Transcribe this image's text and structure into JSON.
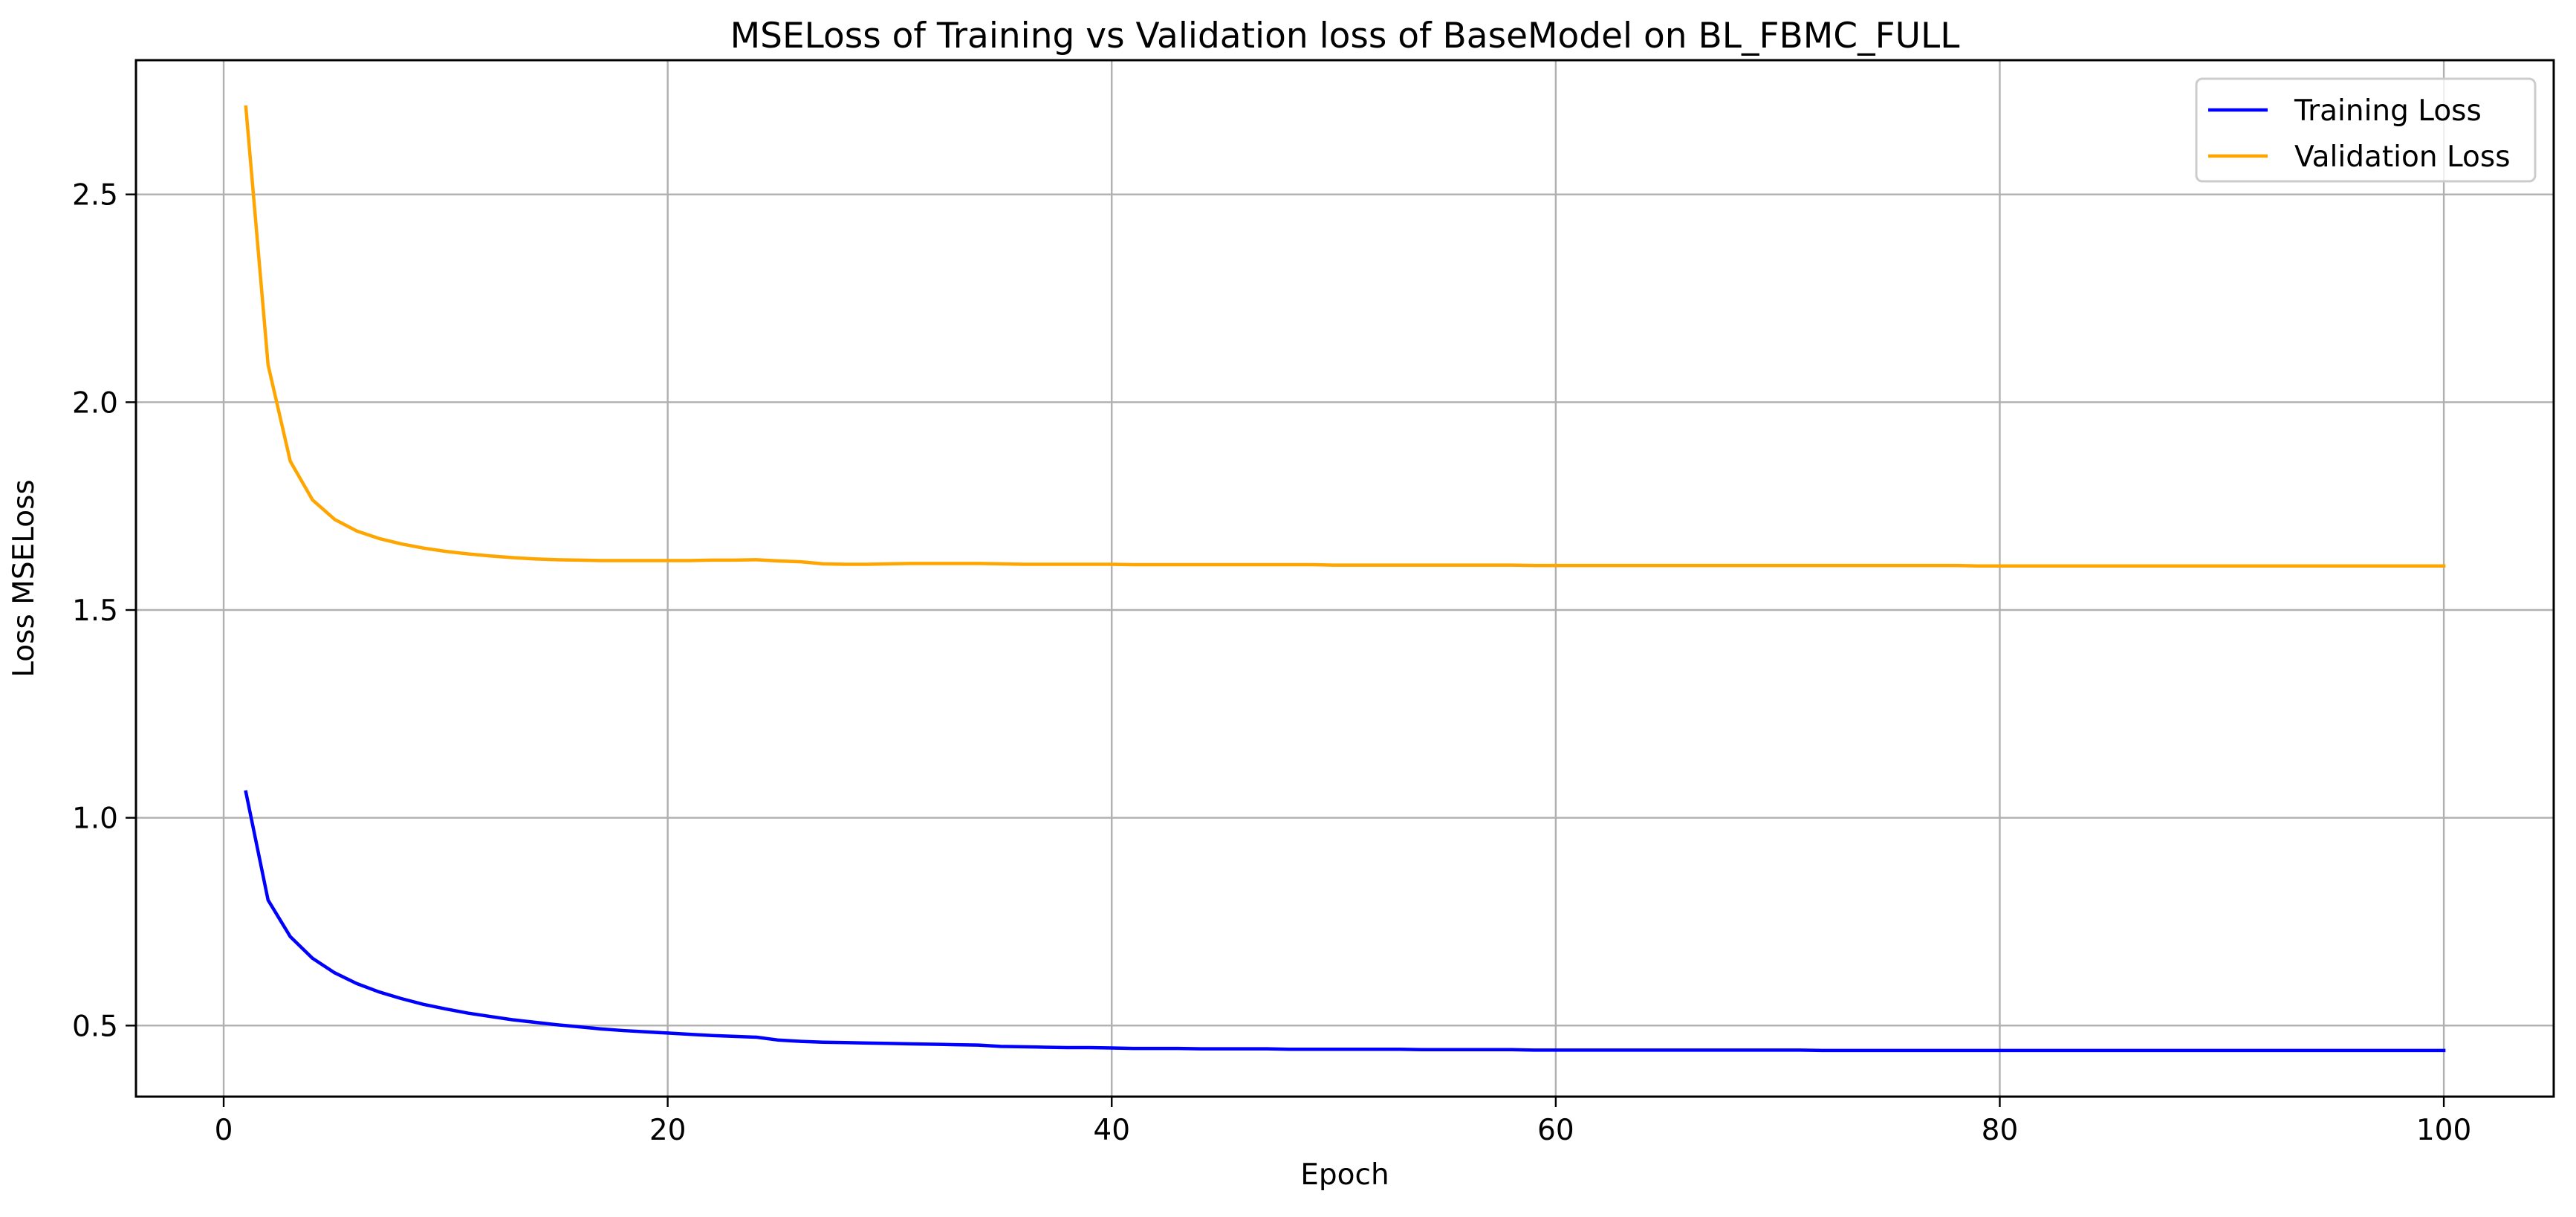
{
  "chart_data": {
    "type": "line",
    "title": "MSELoss of Training vs Validation loss of BaseModel on BL_FBMC_FULL",
    "xlabel": "Epoch",
    "ylabel": "Loss MSELoss",
    "xlim": [
      -3.95,
      104.95
    ],
    "ylim": [
      0.329,
      2.823
    ],
    "x_ticks": [
      0,
      20,
      40,
      60,
      80,
      100
    ],
    "x_tick_labels": [
      "0",
      "20",
      "40",
      "60",
      "80",
      "100"
    ],
    "y_ticks": [
      0.5,
      1.0,
      1.5,
      2.0,
      2.5
    ],
    "y_tick_labels": [
      "0.5",
      "1.0",
      "1.5",
      "2.0",
      "2.5"
    ],
    "grid": true,
    "legend_position": "top-right",
    "x": [
      1,
      2,
      3,
      4,
      5,
      6,
      7,
      8,
      9,
      10,
      11,
      12,
      13,
      14,
      15,
      16,
      17,
      18,
      19,
      20,
      21,
      22,
      23,
      24,
      25,
      26,
      27,
      28,
      29,
      30,
      31,
      32,
      33,
      34,
      35,
      36,
      37,
      38,
      39,
      40,
      41,
      42,
      43,
      44,
      45,
      46,
      47,
      48,
      49,
      50,
      51,
      52,
      53,
      54,
      55,
      56,
      57,
      58,
      59,
      60,
      61,
      62,
      63,
      64,
      65,
      66,
      67,
      68,
      69,
      70,
      71,
      72,
      73,
      74,
      75,
      76,
      77,
      78,
      79,
      80,
      81,
      82,
      83,
      84,
      85,
      86,
      87,
      88,
      89,
      90,
      91,
      92,
      93,
      94,
      95,
      96,
      97,
      98,
      99,
      100
    ],
    "series": [
      {
        "name": "Training Loss",
        "color": "#0000ff",
        "values": [
          1.062,
          0.802,
          0.714,
          0.662,
          0.627,
          0.601,
          0.581,
          0.565,
          0.551,
          0.54,
          0.53,
          0.522,
          0.514,
          0.508,
          0.502,
          0.497,
          0.492,
          0.488,
          0.485,
          0.482,
          0.479,
          0.476,
          0.474,
          0.472,
          0.465,
          0.462,
          0.46,
          0.459,
          0.458,
          0.457,
          0.456,
          0.455,
          0.454,
          0.453,
          0.45,
          0.449,
          0.448,
          0.447,
          0.447,
          0.446,
          0.445,
          0.445,
          0.445,
          0.444,
          0.444,
          0.444,
          0.444,
          0.443,
          0.443,
          0.443,
          0.443,
          0.443,
          0.443,
          0.442,
          0.442,
          0.442,
          0.442,
          0.442,
          0.441,
          0.441,
          0.441,
          0.441,
          0.441,
          0.441,
          0.441,
          0.441,
          0.441,
          0.441,
          0.441,
          0.441,
          0.441,
          0.44,
          0.44,
          0.44,
          0.44,
          0.44,
          0.44,
          0.44,
          0.44,
          0.44,
          0.44,
          0.44,
          0.44,
          0.44,
          0.44,
          0.44,
          0.44,
          0.44,
          0.44,
          0.44,
          0.44,
          0.44,
          0.44,
          0.44,
          0.44,
          0.44,
          0.44,
          0.44,
          0.44,
          0.44
        ]
      },
      {
        "name": "Validation Loss",
        "color": "#ffa500",
        "values": [
          2.71,
          2.09,
          1.858,
          1.765,
          1.718,
          1.69,
          1.672,
          1.659,
          1.649,
          1.641,
          1.635,
          1.63,
          1.626,
          1.623,
          1.621,
          1.62,
          1.619,
          1.619,
          1.619,
          1.619,
          1.619,
          1.62,
          1.62,
          1.621,
          1.618,
          1.616,
          1.611,
          1.61,
          1.61,
          1.611,
          1.612,
          1.612,
          1.612,
          1.612,
          1.611,
          1.61,
          1.61,
          1.61,
          1.61,
          1.61,
          1.609,
          1.609,
          1.609,
          1.609,
          1.609,
          1.609,
          1.609,
          1.609,
          1.609,
          1.608,
          1.608,
          1.608,
          1.608,
          1.608,
          1.608,
          1.608,
          1.608,
          1.608,
          1.607,
          1.607,
          1.607,
          1.607,
          1.607,
          1.607,
          1.607,
          1.607,
          1.607,
          1.607,
          1.607,
          1.607,
          1.607,
          1.607,
          1.607,
          1.607,
          1.607,
          1.607,
          1.607,
          1.607,
          1.606,
          1.606,
          1.606,
          1.606,
          1.606,
          1.606,
          1.606,
          1.606,
          1.606,
          1.606,
          1.606,
          1.606,
          1.606,
          1.606,
          1.606,
          1.606,
          1.606,
          1.606,
          1.606,
          1.606,
          1.606,
          1.606
        ]
      }
    ]
  }
}
